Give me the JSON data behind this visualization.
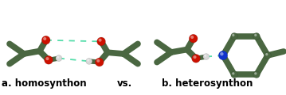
{
  "background_color": "#ffffff",
  "label_a": "a. homosynthon",
  "label_vs": "vs.",
  "label_b": "b. heterosynthon",
  "label_fontsize": 8.5,
  "label_fontweight": "bold",
  "bond_color": "#4a6741",
  "bond_lw": 5.5,
  "oxygen_color": "#cc1100",
  "hydrogen_color": "#d8d8d8",
  "nitrogen_color": "#1133cc",
  "hbond_color": "#55ddaa",
  "hbond_lw": 1.3,
  "rO": 0.03,
  "rH": 0.022,
  "rN": 0.032,
  "rC": 0.024
}
